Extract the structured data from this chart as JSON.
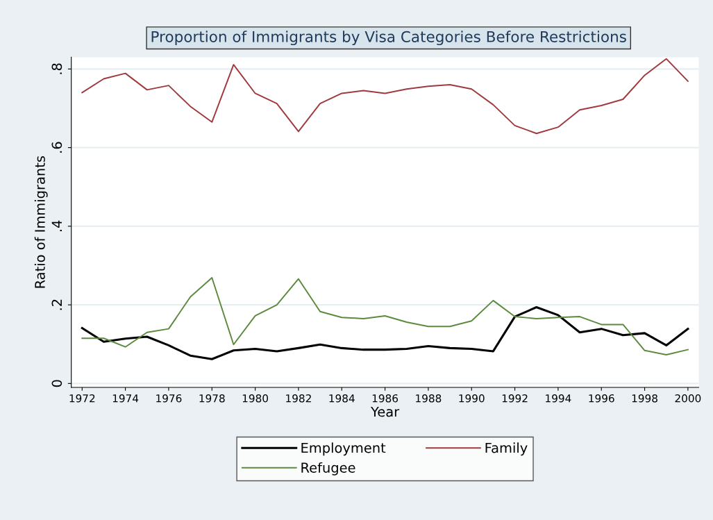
{
  "chart_data": {
    "type": "line",
    "title": "Proportion of Immigrants by Visa Categories Before Restrictions",
    "xlabel": "Year",
    "ylabel": "Ratio of Immigrants",
    "x": [
      1972,
      1973,
      1974,
      1975,
      1976,
      1977,
      1978,
      1979,
      1980,
      1981,
      1982,
      1983,
      1984,
      1985,
      1986,
      1987,
      1988,
      1989,
      1990,
      1991,
      1992,
      1993,
      1994,
      1995,
      1996,
      1997,
      1998,
      1999,
      2000
    ],
    "series": [
      {
        "name": "Employment",
        "color": "#000000",
        "values": [
          0.141,
          0.106,
          0.114,
          0.119,
          0.097,
          0.071,
          0.062,
          0.084,
          0.088,
          0.082,
          0.09,
          0.099,
          0.09,
          0.086,
          0.086,
          0.088,
          0.095,
          0.09,
          0.088,
          0.082,
          0.17,
          0.194,
          0.174,
          0.13,
          0.139,
          0.123,
          0.128,
          0.097,
          0.139
        ]
      },
      {
        "name": "Family",
        "color": "#a0393e",
        "values": [
          0.74,
          0.775,
          0.789,
          0.747,
          0.758,
          0.705,
          0.665,
          0.811,
          0.738,
          0.712,
          0.641,
          0.712,
          0.738,
          0.745,
          0.738,
          0.749,
          0.756,
          0.76,
          0.749,
          0.709,
          0.656,
          0.636,
          0.652,
          0.696,
          0.707,
          0.723,
          0.784,
          0.826,
          0.769
        ]
      },
      {
        "name": "Refugee",
        "color": "#5b8a3c",
        "values": [
          0.115,
          0.115,
          0.093,
          0.13,
          0.139,
          0.22,
          0.269,
          0.099,
          0.172,
          0.2,
          0.266,
          0.183,
          0.168,
          0.165,
          0.172,
          0.156,
          0.145,
          0.145,
          0.159,
          0.211,
          0.17,
          0.165,
          0.168,
          0.17,
          0.15,
          0.15,
          0.084,
          0.073,
          0.086
        ]
      }
    ],
    "xlim": [
      1971.5,
      2000.5
    ],
    "xticks": [
      1972,
      1974,
      1976,
      1978,
      1980,
      1982,
      1984,
      1986,
      1988,
      1990,
      1992,
      1994,
      1996,
      1998,
      2000
    ],
    "ylim": [
      -0.01,
      0.83
    ],
    "yticks": [
      {
        "value": 0,
        "label": "0"
      },
      {
        "value": 0.2,
        "label": ".2"
      },
      {
        "value": 0.4,
        "label": ".4"
      },
      {
        "value": 0.6,
        "label": ".6"
      },
      {
        "value": 0.8,
        "label": ".8"
      }
    ],
    "grid": "y",
    "legend": "bottom",
    "marker": "none",
    "line_style": "solid"
  }
}
